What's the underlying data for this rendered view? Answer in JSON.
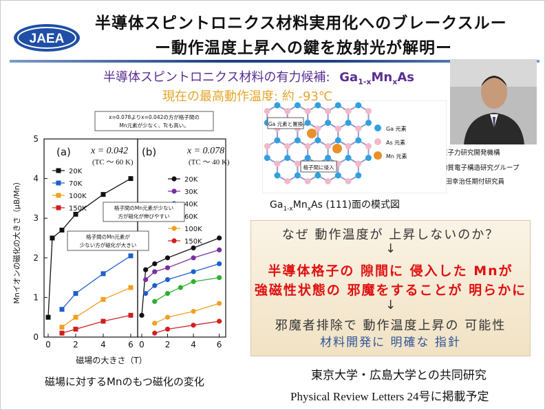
{
  "title": {
    "line1": "半導体スピントロニクス材料実用化へのブレークスルー",
    "line2": "ー動作温度上昇への鍵を放射光が解明ー"
  },
  "logo": {
    "text": "JAEA"
  },
  "candidate": {
    "label": "半導体スピントロニクス材料の有力候補:",
    "formula_ga": "Ga",
    "sub1": "1-x",
    "formula_mn": "Mn",
    "sub2": "x",
    "formula_as": "As"
  },
  "current_temp": {
    "label": "現在の最高動作温度: 約",
    "value": "-93℃"
  },
  "researcher": {
    "org": "日本原子力研究開発機構",
    "group": "先端物質電子構造研究グループ",
    "name": "竹田幸治任期付研究員"
  },
  "lattice": {
    "label_substitution": "Ga 元素と置換",
    "label_interstitial": "格子間に侵入",
    "legend": [
      "Ga 元素",
      "As 元素",
      "Mn 元素"
    ],
    "caption_pre": "Ga",
    "caption_sub": "1-x",
    "caption_mid": "Mn",
    "caption_sub2": "x",
    "caption_post": "As (111)面の模式図"
  },
  "chart_data": [
    {
      "type": "line",
      "panel": "(a)",
      "annotation": "x = 0.042",
      "annotation2": "(TC ～ 60 K)",
      "xlabel": "磁場の大きさ（T）",
      "ylabel": "Mnイオンの磁化の大きさ（μB/Mn）",
      "xlim": [
        0,
        6.5
      ],
      "ylim": [
        0,
        5
      ],
      "series": [
        {
          "name": "20K",
          "color": "#111111",
          "x": [
            0,
            0.3,
            1,
            2,
            4,
            6
          ],
          "y": [
            0.5,
            2.5,
            2.7,
            3.1,
            3.6,
            4.0
          ]
        },
        {
          "name": "70K",
          "color": "#1f5fc9",
          "x": [
            1,
            2,
            4,
            6
          ],
          "y": [
            0.7,
            1.1,
            1.6,
            2.05
          ]
        },
        {
          "name": "100K",
          "color": "#f0a020",
          "x": [
            1,
            2,
            4,
            6
          ],
          "y": [
            0.25,
            0.5,
            0.95,
            1.25
          ]
        },
        {
          "name": "150K",
          "color": "#d02020",
          "x": [
            1,
            2,
            4,
            6
          ],
          "y": [
            0.1,
            0.2,
            0.4,
            0.55
          ]
        }
      ]
    },
    {
      "type": "line",
      "panel": "(b)",
      "annotation": "x = 0.078",
      "annotation2": "(TC ～ 40 K)",
      "xlim": [
        0,
        6.5
      ],
      "ylim": [
        0,
        5
      ],
      "series": [
        {
          "name": "20K",
          "color": "#111111",
          "x": [
            0,
            0.3,
            1,
            2,
            4,
            6
          ],
          "y": [
            0.55,
            1.7,
            1.85,
            2.0,
            2.25,
            2.5
          ]
        },
        {
          "name": "30K",
          "color": "#7a2fa0",
          "x": [
            0.3,
            1,
            2,
            4,
            6
          ],
          "y": [
            1.45,
            1.65,
            1.75,
            2.0,
            2.2
          ]
        },
        {
          "name": "40K",
          "color": "#1f5fc9",
          "x": [
            0.3,
            1,
            2,
            4,
            6
          ],
          "y": [
            1.1,
            1.3,
            1.45,
            1.65,
            1.85
          ]
        },
        {
          "name": "60K",
          "color": "#2fb02f",
          "x": [
            1,
            2,
            3,
            4,
            6
          ],
          "y": [
            0.9,
            1.1,
            1.25,
            1.4,
            1.5
          ]
        },
        {
          "name": "100K",
          "color": "#f0a020",
          "x": [
            1,
            2,
            4,
            6
          ],
          "y": [
            0.35,
            0.5,
            0.65,
            0.85
          ]
        },
        {
          "name": "150K",
          "color": "#d02020",
          "x": [
            1,
            2,
            4,
            6
          ],
          "y": [
            0.1,
            0.2,
            0.3,
            0.4
          ]
        }
      ]
    }
  ],
  "chart_text": {
    "callout_top": "x=0.078よりx=0.042の方が格子間のMn元素が少なく、Tcも高い。",
    "callout_mid": "格子間のMn元素が少ない方が磁化が伸びやすい",
    "callout_low": "格子間のMn元素が少ない方が磁化が大きい",
    "caption": "磁場に対するMnのもつ磁化の変化"
  },
  "summary": {
    "q": "なぜ 動作温度が 上昇しないのか？",
    "arrow": "↓",
    "a1": "半導体格子の 隙間に 侵入した Mnが",
    "a2": "強磁性状態の 邪魔をすることが 明らかに",
    "c1": "邪魔者排除で 動作温度上昇の 可能性",
    "c2": "材料開発に 明確な 指針"
  },
  "collab": "東京大学・広島大学との共同研究",
  "journal": "Physical Review Letters 24号に掲載予定"
}
